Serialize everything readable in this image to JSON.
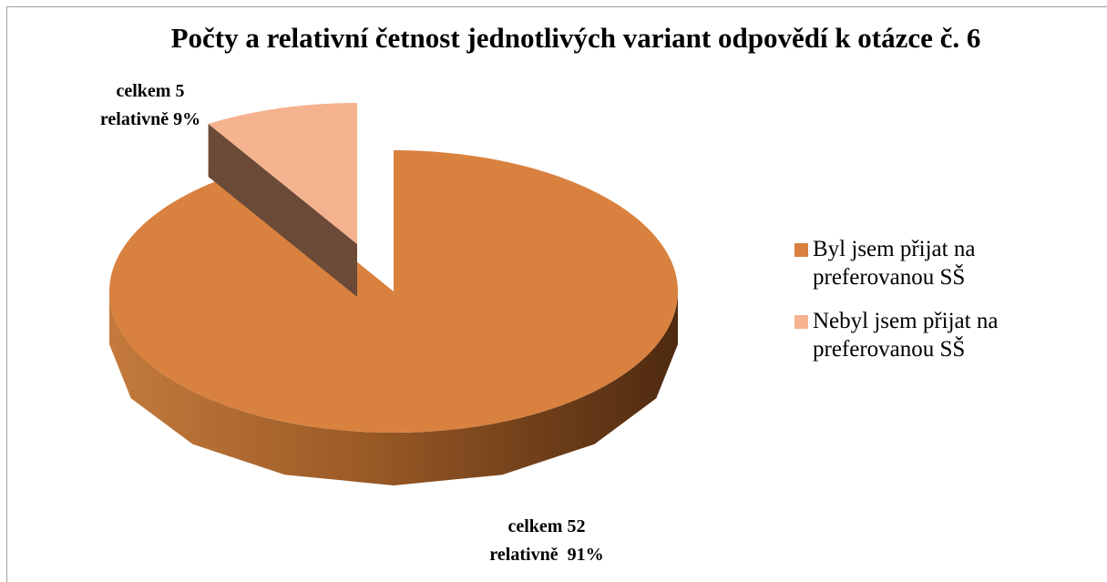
{
  "chart_data": {
    "type": "pie3d",
    "title": "Počty a relativní četnost jednotlivých variant odpovědí k otázce č. 6",
    "categories": [
      "Byl jsem přijat na preferovanou SŠ",
      "Nebyl jsem přijat na preferovanou SŠ"
    ],
    "values": [
      52,
      5
    ],
    "value_labels": [
      [
        "celkem 52",
        "relativně  91%"
      ],
      [
        "celkem 5",
        "relativně 9%"
      ]
    ],
    "colors": [
      "#d9813e",
      "#f5b28e"
    ],
    "legend": "right"
  }
}
